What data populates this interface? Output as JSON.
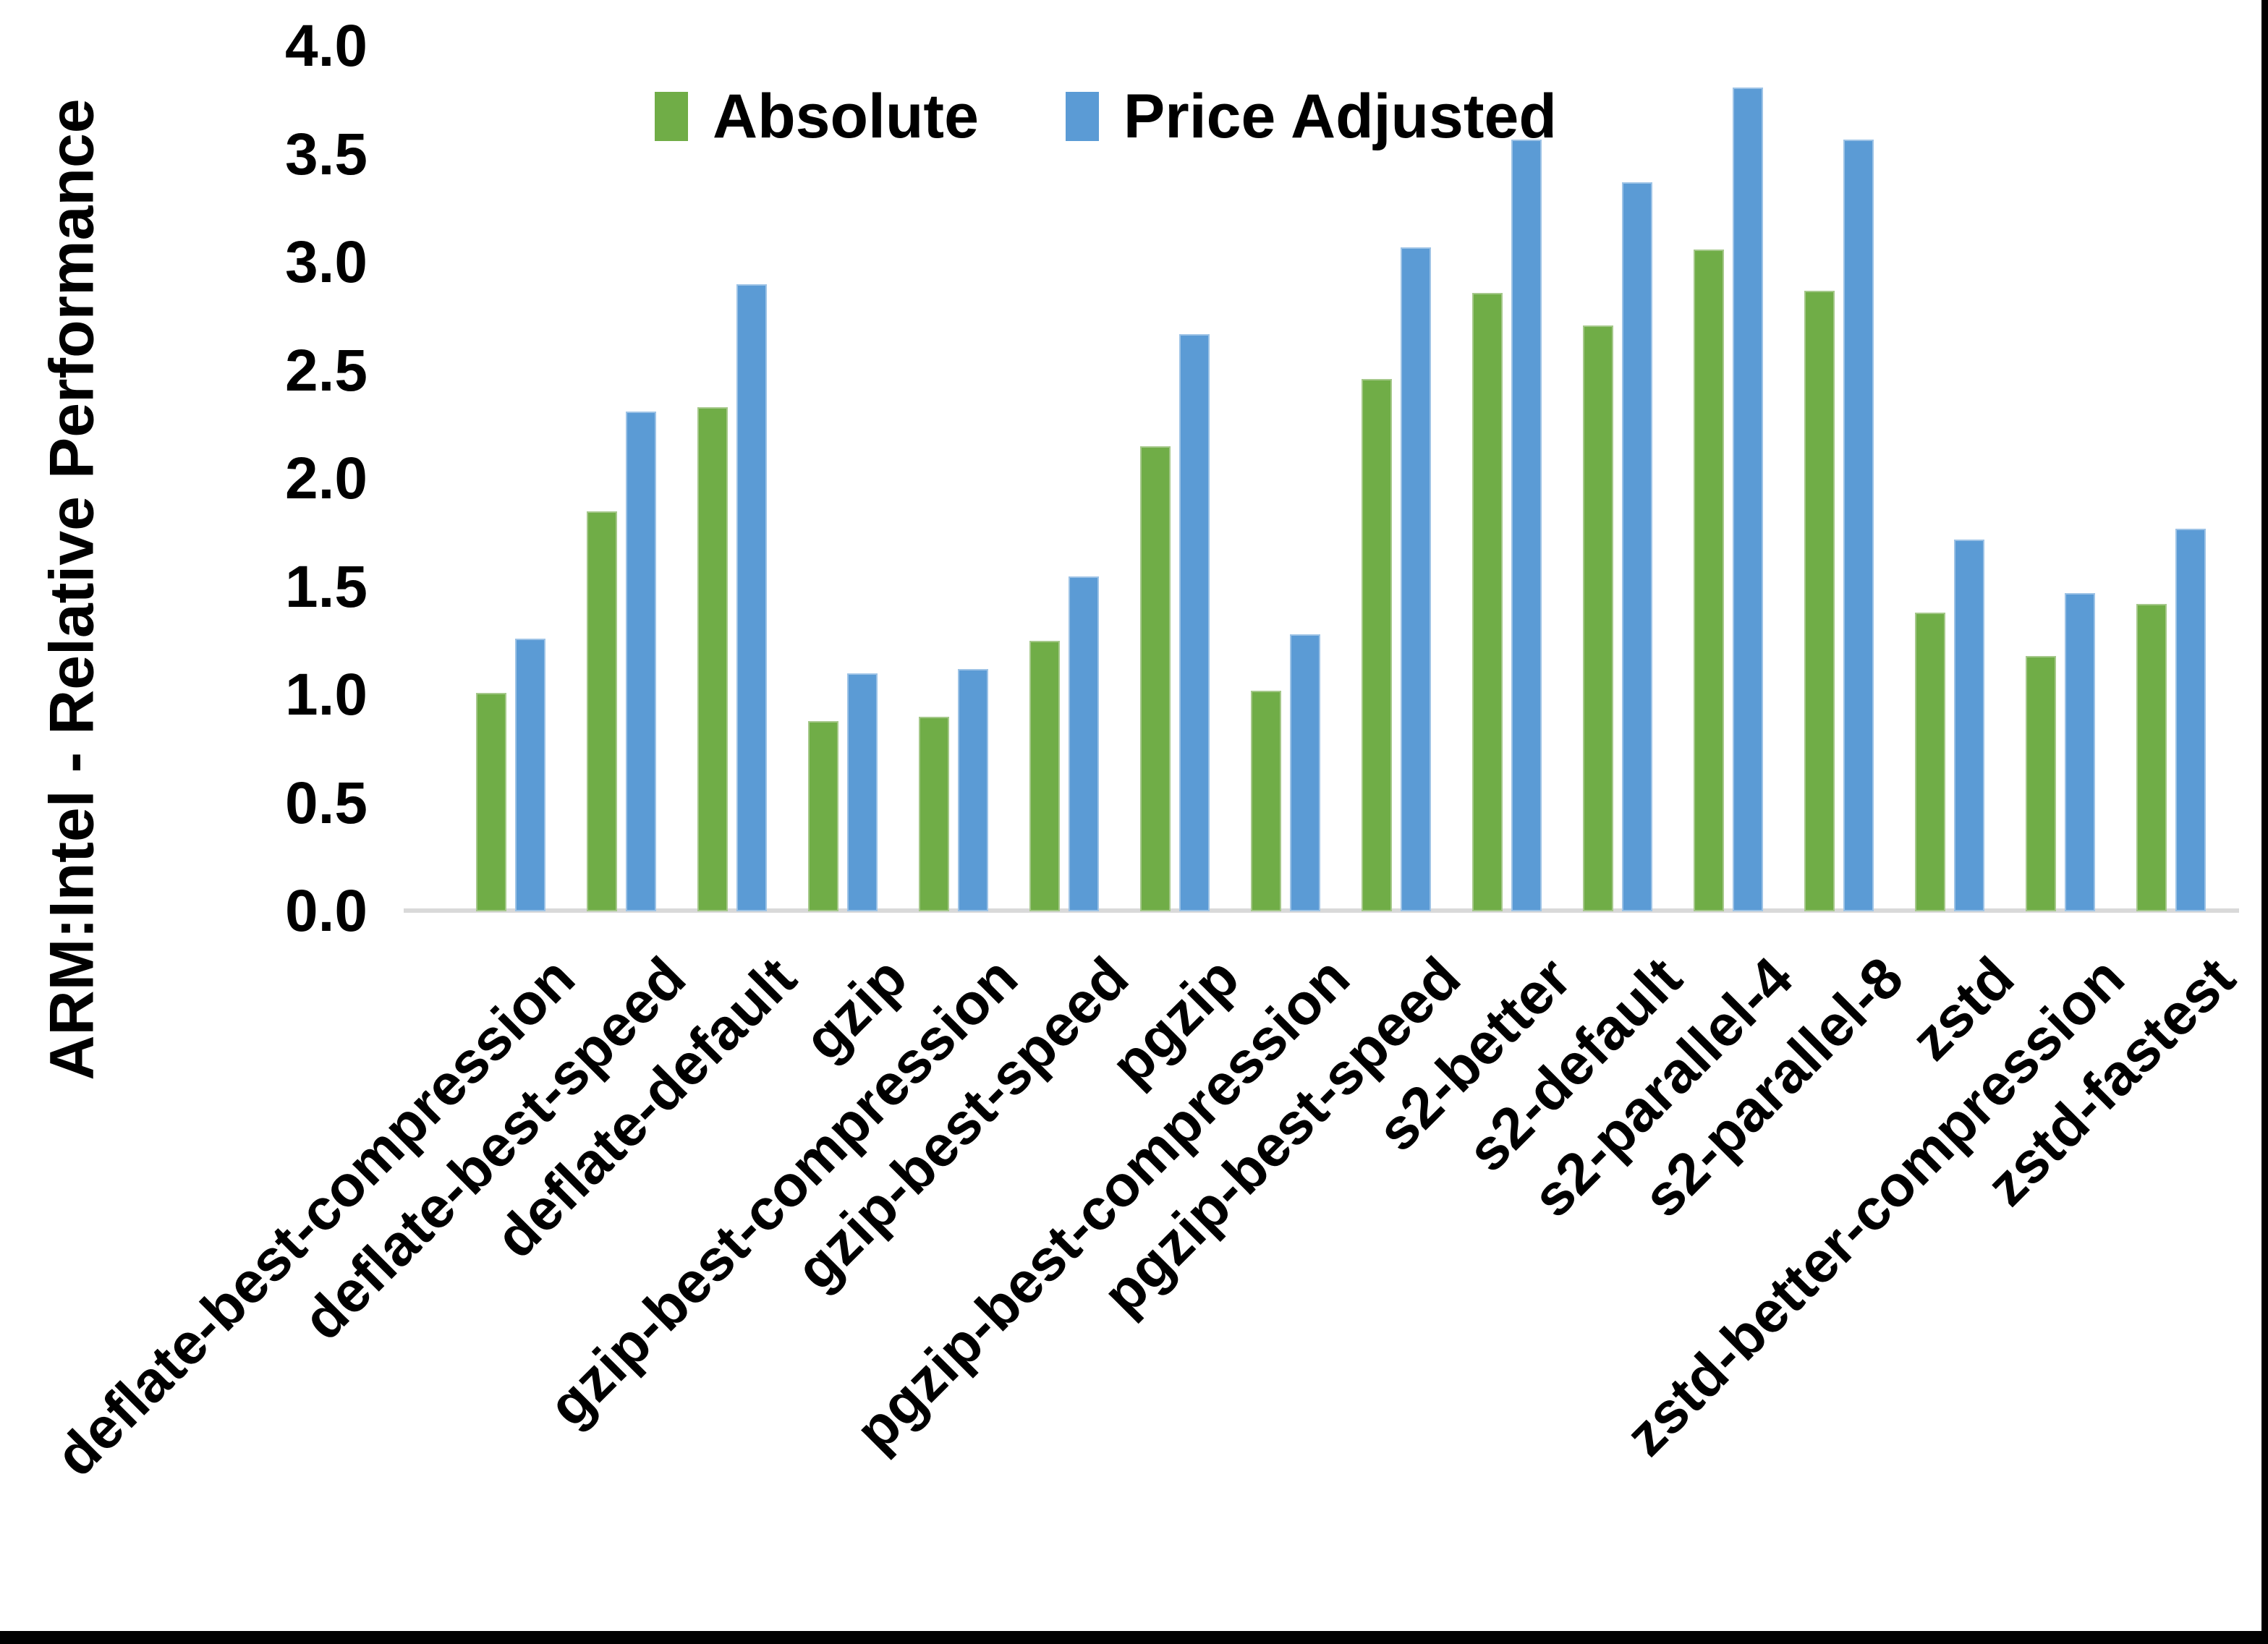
{
  "chart_data": {
    "type": "bar",
    "title": "",
    "xlabel": "",
    "ylabel": "ARM:Intel - Relative Performance",
    "ylim": [
      0.0,
      4.0
    ],
    "ytick_step": 0.5,
    "yticks": [
      "0.0",
      "0.5",
      "1.0",
      "1.5",
      "2.0",
      "2.5",
      "3.0",
      "3.5",
      "4.0"
    ],
    "grid": false,
    "legend_position": "top-center",
    "categories": [
      "deflate-best-compression",
      "deflate-best-speed",
      "deflate-default",
      "gzip",
      "gzip-best-compression",
      "gzip-best-speed",
      "pgzip",
      "pgzip-best-compression",
      "pgzip-best-speed",
      "s2-better",
      "s2-default",
      "s2-parallel-4",
      "s2-parallel-8",
      "zstd",
      "zstd-better-compression",
      "zstd-fastest"
    ],
    "series": [
      {
        "name": "Absolute",
        "color": "#70AD47",
        "edge_color": "#a5c88a",
        "values": [
          1.01,
          1.85,
          2.33,
          0.88,
          0.9,
          1.25,
          2.15,
          1.02,
          2.46,
          2.86,
          2.71,
          3.06,
          2.87,
          1.38,
          1.18,
          1.42
        ]
      },
      {
        "name": "Price Adjusted",
        "color": "#5B9BD5",
        "edge_color": "#9dc3e6",
        "values": [
          1.26,
          2.31,
          2.9,
          1.1,
          1.12,
          1.55,
          2.67,
          1.28,
          3.07,
          3.57,
          3.37,
          3.81,
          3.57,
          1.72,
          1.47,
          1.77
        ]
      }
    ],
    "axis_line_color": "#d9d9d9",
    "frame_border_color": "#000000"
  }
}
